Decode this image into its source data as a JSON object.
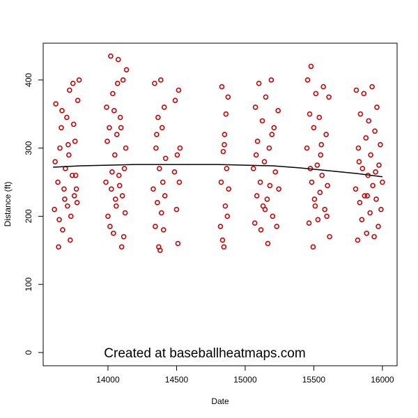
{
  "chart_data": {
    "type": "scatter",
    "xlabel": "Date",
    "ylabel": "Distance (ft)",
    "annotation": "Created at baseballheatmaps.com",
    "xlim": [
      13528,
      16107
    ],
    "ylim": [
      -19.4,
      454
    ],
    "xticks": [
      14000,
      14500,
      15000,
      15500,
      16000
    ],
    "yticks": [
      0,
      100,
      200,
      300,
      400
    ],
    "grid": false,
    "series": [
      {
        "color": "#cc0000",
        "x": [
          13610,
          13620,
          13635,
          13640,
          13650,
          13660,
          13670,
          13680,
          13690,
          13700,
          13705,
          13715,
          13720,
          13730,
          13740,
          13745,
          13755,
          13760,
          13770,
          13780,
          13615,
          13645,
          13665,
          13685,
          13710,
          13725,
          13750,
          13765,
          13775,
          13790,
          13985,
          13990,
          14000,
          14010,
          14020,
          14025,
          14035,
          14040,
          14050,
          14060,
          14065,
          14075,
          14080,
          14090,
          14100,
          14105,
          14110,
          14120,
          14125,
          14135,
          13995,
          14015,
          14030,
          14045,
          14055,
          14070,
          14085,
          14095,
          14115,
          14130,
          14330,
          14340,
          14345,
          14350,
          14360,
          14365,
          14370,
          14375,
          14385,
          14390,
          14395,
          14400,
          14405,
          14410,
          14415,
          14420,
          14355,
          14380,
          14485,
          14490,
          14500,
          14505,
          14510,
          14515,
          14520,
          14525,
          14820,
          14825,
          14830,
          14840,
          14845,
          14850,
          14855,
          14860,
          14865,
          14870,
          14875,
          14880,
          14835,
          14848,
          15060,
          15070,
          15075,
          15085,
          15090,
          15100,
          15110,
          15115,
          15125,
          15130,
          15140,
          15150,
          15160,
          15165,
          15175,
          15180,
          15190,
          15200,
          15210,
          15220,
          15230,
          15240,
          15245,
          15080,
          15145,
          15195,
          15450,
          15455,
          15465,
          15470,
          15480,
          15485,
          15495,
          15500,
          15510,
          15515,
          15525,
          15530,
          15540,
          15545,
          15555,
          15560,
          15570,
          15580,
          15590,
          15600,
          15610,
          15615,
          15475,
          15505,
          15550,
          15595,
          15805,
          15810,
          15820,
          15825,
          15835,
          15840,
          15850,
          15855,
          15865,
          15870,
          15880,
          15885,
          15895,
          15900,
          15910,
          15915,
          15925,
          15930,
          15940,
          15945,
          15955,
          15960,
          15970,
          15975,
          15985,
          15990,
          16000,
          15830,
          15890,
          15950
        ],
        "values": [
          210,
          365,
          250,
          155,
          300,
          330,
          180,
          240,
          270,
          345,
          215,
          290,
          385,
          200,
          260,
          395,
          230,
          310,
          240,
          370,
          280,
          195,
          355,
          225,
          305,
          165,
          335,
          260,
          220,
          400,
          250,
          360,
          200,
          330,
          435,
          240,
          380,
          175,
          290,
          215,
          320,
          430,
          260,
          345,
          155,
          230,
          400,
          270,
          205,
          415,
          310,
          185,
          265,
          355,
          225,
          395,
          245,
          330,
          170,
          300,
          240,
          395,
          185,
          300,
          220,
          345,
          155,
          270,
          400,
          205,
          330,
          250,
          180,
          360,
          230,
          285,
          320,
          150,
          265,
          370,
          210,
          290,
          160,
          385,
          250,
          300,
          185,
          250,
          390,
          295,
          155,
          320,
          215,
          350,
          270,
          200,
          375,
          240,
          165,
          305,
          270,
          190,
          360,
          230,
          310,
          395,
          250,
          180,
          340,
          215,
          280,
          375,
          225,
          160,
          300,
          245,
          400,
          200,
          330,
          265,
          185,
          355,
          240,
          290,
          210,
          320,
          300,
          400,
          190,
          350,
          420,
          250,
          155,
          330,
          215,
          380,
          275,
          195,
          345,
          235,
          305,
          260,
          390,
          210,
          320,
          245,
          375,
          170,
          270,
          225,
          290,
          200,
          240,
          385,
          165,
          300,
          220,
          350,
          195,
          270,
          380,
          230,
          315,
          175,
          260,
          340,
          205,
          290,
          390,
          245,
          170,
          325,
          225,
          360,
          185,
          275,
          305,
          210,
          250,
          280,
          230,
          265
        ]
      },
      {
        "type": "line",
        "color": "#000000",
        "x": [
          13600,
          13800,
          14000,
          14200,
          14400,
          14600,
          14800,
          15000,
          15200,
          15400,
          15600,
          15800,
          16000
        ],
        "values": [
          272,
          274,
          275,
          276,
          276,
          276,
          276,
          275,
          274,
          271,
          267,
          263,
          258
        ]
      }
    ]
  }
}
